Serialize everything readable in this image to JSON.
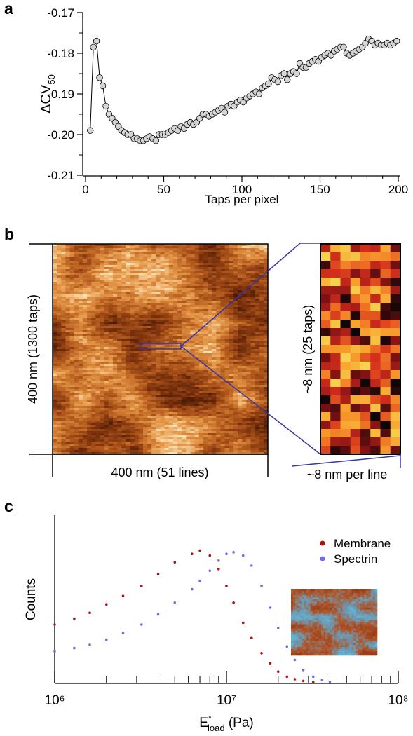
{
  "panel_labels": [
    "a",
    "b",
    "c"
  ],
  "chart_data": [
    {
      "type": "line",
      "ylabel": {
        "main": "ΔCV",
        "sub": "50"
      },
      "xlabel": "Taps per pixel",
      "marker_color": "#d4d4d4",
      "line_color": "#000000",
      "xlim": [
        0,
        200
      ],
      "xticks": [
        0,
        50,
        100,
        150,
        200
      ],
      "xminorticks": [
        10,
        20,
        30,
        40,
        60,
        70,
        80,
        90,
        110,
        120,
        130,
        140,
        160,
        170,
        180,
        190
      ],
      "ylim": [
        -0.21,
        -0.17
      ],
      "yticks": [
        -0.21,
        {
          "value": -0.2,
          "label": "-0.20"
        },
        -0.19,
        -0.18,
        -0.17
      ],
      "yminorticks": [
        -0.205,
        -0.195,
        -0.185,
        -0.175
      ],
      "x": [
        3,
        5,
        7,
        9,
        11,
        13,
        15,
        17,
        19,
        21,
        23,
        25,
        27,
        29,
        31,
        33,
        35,
        37,
        39,
        41,
        43,
        45,
        47,
        49,
        51,
        53,
        55,
        57,
        59,
        61,
        63,
        65,
        67,
        69,
        71,
        73,
        75,
        77,
        79,
        81,
        83,
        85,
        87,
        89,
        91,
        93,
        95,
        97,
        99,
        101,
        103,
        105,
        107,
        109,
        111,
        113,
        115,
        117,
        119,
        121,
        123,
        125,
        127,
        129,
        131,
        133,
        135,
        137,
        139,
        141,
        143,
        145,
        147,
        149,
        151,
        153,
        155,
        157,
        159,
        161,
        163,
        165,
        167,
        169,
        171,
        173,
        175,
        177,
        179,
        181,
        183,
        185,
        187,
        189,
        191,
        193,
        195,
        197,
        199
      ],
      "values": [
        -0.199,
        -0.1785,
        -0.177,
        -0.186,
        -0.188,
        -0.193,
        -0.195,
        -0.196,
        -0.197,
        -0.198,
        -0.199,
        -0.1995,
        -0.2,
        -0.2,
        -0.201,
        -0.201,
        -0.2015,
        -0.2015,
        -0.201,
        -0.2005,
        -0.201,
        -0.2015,
        -0.2,
        -0.2,
        -0.2,
        -0.1995,
        -0.199,
        -0.1985,
        -0.199,
        -0.198,
        -0.1985,
        -0.1975,
        -0.197,
        -0.1975,
        -0.197,
        -0.196,
        -0.195,
        -0.195,
        -0.1955,
        -0.195,
        -0.1945,
        -0.194,
        -0.1935,
        -0.1945,
        -0.193,
        -0.1925,
        -0.193,
        -0.192,
        -0.1915,
        -0.192,
        -0.191,
        -0.1905,
        -0.19,
        -0.1895,
        -0.19,
        -0.1885,
        -0.188,
        -0.1875,
        -0.186,
        -0.1865,
        -0.187,
        -0.1855,
        -0.185,
        -0.1865,
        -0.185,
        -0.1845,
        -0.185,
        -0.1825,
        -0.1835,
        -0.1835,
        -0.1825,
        -0.182,
        -0.1815,
        -0.182,
        -0.181,
        -0.1805,
        -0.18,
        -0.1805,
        -0.1795,
        -0.179,
        -0.1785,
        -0.1785,
        -0.18,
        -0.1805,
        -0.18,
        -0.1795,
        -0.179,
        -0.1785,
        -0.1775,
        -0.1765,
        -0.177,
        -0.178,
        -0.1775,
        -0.178,
        -0.178,
        -0.1775,
        -0.178,
        -0.1775,
        -0.177
      ]
    },
    {
      "type": "scatter",
      "xscale": "log",
      "ylabel": "Counts",
      "xlabel": {
        "main": "E",
        "sup": "*",
        "sub": "load",
        "rest": " (Pa)"
      },
      "xlim": [
        1000000,
        100000000
      ],
      "xticks": [
        {
          "value": 1000000,
          "label": "10⁶"
        },
        {
          "value": 10000000,
          "label": "10⁷"
        },
        {
          "value": 100000000,
          "label": "10⁸"
        }
      ],
      "xminorticks": [
        2000000,
        3000000,
        4000000,
        5000000,
        6000000,
        7000000,
        8000000,
        9000000,
        20000000,
        30000000,
        40000000,
        50000000,
        60000000,
        70000000,
        80000000,
        90000000
      ],
      "ylim": [
        0,
        100
      ],
      "legend": "upper right",
      "series": [
        {
          "name": "Membrane",
          "color": "#b01212",
          "x": [
            1000000,
            1300000,
            1600000,
            2000000,
            2500000,
            3200000,
            4000000,
            5000000,
            6300000,
            7000000,
            8000000,
            9000000,
            10000000,
            11000000,
            12500000,
            14000000,
            16000000,
            18000000,
            20000000,
            22500000,
            25000000,
            28000000,
            32000000
          ],
          "values": [
            35,
            38.5,
            42,
            47,
            52,
            58,
            65,
            72,
            77,
            79,
            76,
            68,
            58,
            48,
            36,
            27,
            18,
            12,
            7,
            4,
            2.5,
            1.5,
            0.8
          ]
        },
        {
          "name": "Spectrin",
          "color": "#6b6bf0",
          "x": [
            1000000,
            1300000,
            1600000,
            2000000,
            2500000,
            3200000,
            4000000,
            5000000,
            6300000,
            7000000,
            8000000,
            9000000,
            10000000,
            11000000,
            12500000,
            14000000,
            16000000,
            18000000,
            20000000,
            22500000,
            25000000,
            28000000,
            32000000,
            36000000,
            40000000
          ],
          "values": [
            19,
            21,
            23,
            26,
            30,
            35,
            41,
            48,
            56,
            61,
            67,
            73,
            77,
            78,
            76,
            70,
            58,
            45,
            33,
            22,
            14,
            8,
            4,
            2,
            1
          ]
        }
      ]
    }
  ],
  "panel_b": {
    "left_label": "400 nm (1300 taps)",
    "bottom_label": "400 nm (51 lines)",
    "zoom_label": "~8 nm (25 taps)",
    "zoom_bottom_label": "~8 nm per line"
  }
}
